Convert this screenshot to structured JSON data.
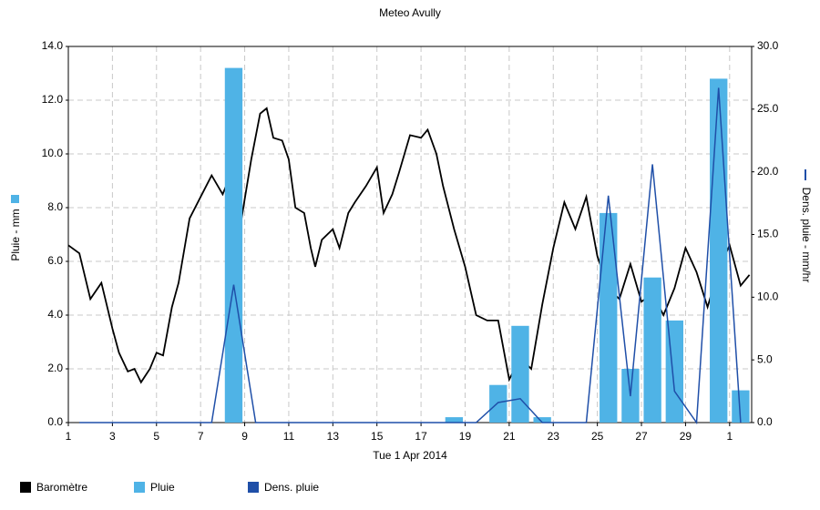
{
  "chart_data": {
    "type": "combo",
    "title": "Meteo  Avully",
    "xlabel": "Tue 1 Apr 2014",
    "ylabel": "Pluie - mm",
    "y2label": "Dens. pluie - mm/hr",
    "xlim": [
      0,
      31
    ],
    "xticks": [
      {
        "value": 0,
        "label": "1"
      },
      {
        "value": 2,
        "label": "3"
      },
      {
        "value": 4,
        "label": "5"
      },
      {
        "value": 6,
        "label": "7"
      },
      {
        "value": 8,
        "label": "9"
      },
      {
        "value": 10,
        "label": "11"
      },
      {
        "value": 12,
        "label": "13"
      },
      {
        "value": 14,
        "label": "15"
      },
      {
        "value": 16,
        "label": "17"
      },
      {
        "value": 18,
        "label": "19"
      },
      {
        "value": 20,
        "label": "21"
      },
      {
        "value": 22,
        "label": "23"
      },
      {
        "value": 24,
        "label": "25"
      },
      {
        "value": 26,
        "label": "27"
      },
      {
        "value": 28,
        "label": "29"
      },
      {
        "value": 30,
        "label": "1"
      }
    ],
    "ylim": [
      0,
      14
    ],
    "yticks": [
      {
        "value": 0,
        "label": "0.0"
      },
      {
        "value": 2,
        "label": "2.0"
      },
      {
        "value": 4,
        "label": "4.0"
      },
      {
        "value": 6,
        "label": "6.0"
      },
      {
        "value": 8,
        "label": "8.0"
      },
      {
        "value": 10,
        "label": "10.0"
      },
      {
        "value": 12,
        "label": "12.0"
      },
      {
        "value": 14,
        "label": "14.0"
      }
    ],
    "y2lim": [
      0,
      30
    ],
    "y2ticks": [
      {
        "value": 0,
        "label": "0.0"
      },
      {
        "value": 5,
        "label": "5.0"
      },
      {
        "value": 10,
        "label": "10.0"
      },
      {
        "value": 15,
        "label": "15.0"
      },
      {
        "value": 20,
        "label": "20.0"
      },
      {
        "value": 25,
        "label": "25.0"
      },
      {
        "value": 30,
        "label": "30.0"
      }
    ],
    "grid": true,
    "series": [
      {
        "name": "Baromètre",
        "type": "line",
        "color": "#000000",
        "x": [
          0,
          0.5,
          1,
          1.5,
          2,
          2.3,
          2.7,
          3,
          3.3,
          3.7,
          4,
          4.3,
          4.7,
          5,
          5.5,
          6,
          6.5,
          7,
          7.3,
          7.7,
          8,
          8.3,
          8.7,
          9,
          9.3,
          9.7,
          10,
          10.3,
          10.7,
          11,
          11.2,
          11.5,
          12,
          12.3,
          12.7,
          13,
          13.5,
          14,
          14.3,
          14.7,
          15,
          15.5,
          16,
          16.3,
          16.7,
          17,
          17.5,
          18,
          18.5,
          19,
          19.5,
          20,
          20.5,
          21,
          21.5,
          22,
          22.5,
          23,
          23.5,
          24,
          24.5,
          25,
          25.5,
          26,
          26.5,
          27,
          27.5,
          28,
          28.5,
          29,
          29.5,
          30,
          30.5,
          30.9
        ],
        "values": [
          6.6,
          6.3,
          4.6,
          5.2,
          3.5,
          2.6,
          1.9,
          2.0,
          1.5,
          2.0,
          2.6,
          2.5,
          4.3,
          5.2,
          7.6,
          8.4,
          9.2,
          8.5,
          9.1,
          6.8,
          8.3,
          9.8,
          11.5,
          11.7,
          10.6,
          10.5,
          9.8,
          8.0,
          7.8,
          6.5,
          5.8,
          6.8,
          7.2,
          6.5,
          7.8,
          8.2,
          8.8,
          9.5,
          7.8,
          8.5,
          9.3,
          10.7,
          10.6,
          10.9,
          10.0,
          8.8,
          7.2,
          5.8,
          4.0,
          3.8,
          3.8,
          1.6,
          2.4,
          2.0,
          4.4,
          6.5,
          8.2,
          7.2,
          8.4,
          6.2,
          5.0,
          4.6,
          5.9,
          4.5,
          4.8,
          4.0,
          5.0,
          6.5,
          5.6,
          4.3,
          5.7,
          6.6,
          5.1,
          5.5
        ]
      },
      {
        "name": "Pluie",
        "type": "bar",
        "color": "#4fb3e6",
        "x": [
          7.5,
          17.5,
          19.5,
          20.5,
          21.5,
          24.5,
          25.5,
          26.5,
          27.5,
          29.5,
          30.5
        ],
        "values": [
          13.2,
          0.2,
          1.4,
          3.6,
          0.2,
          7.8,
          2.0,
          5.4,
          3.8,
          12.8,
          1.2
        ]
      },
      {
        "name": "Dens. pluie",
        "type": "line",
        "axis": "y2",
        "color": "#1f4fa8",
        "x": [
          0.5,
          6.5,
          7.5,
          8.5,
          18.5,
          19.5,
          20.5,
          21.5,
          23.5,
          24.5,
          25.5,
          26.5,
          27.5,
          28.5,
          29.5,
          30.5
        ],
        "values": [
          0,
          0,
          11,
          0,
          0,
          1.6,
          1.9,
          0,
          0,
          18.1,
          2.1,
          20.6,
          2.5,
          0,
          26.7,
          0
        ]
      }
    ]
  }
}
